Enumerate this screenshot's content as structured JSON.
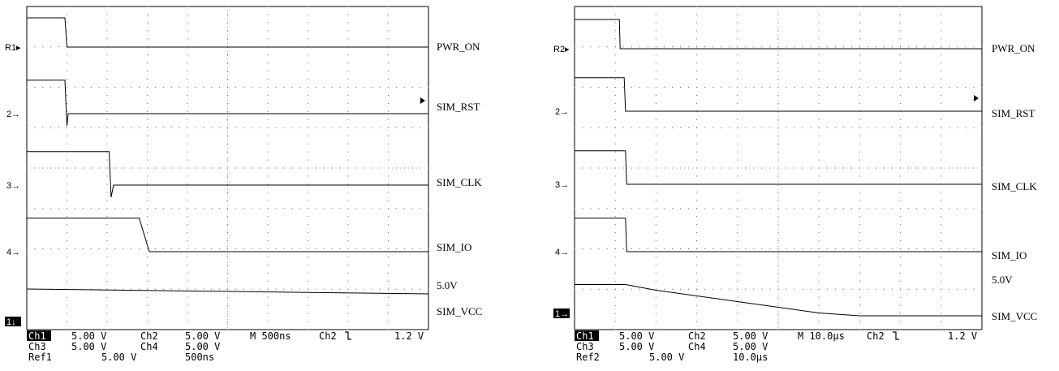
{
  "panels": [
    {
      "ref_marker": "R1",
      "gnd1_glyph": "1↓",
      "readout": {
        "ch1_name": "Ch1",
        "ch1_scale": "5.00 V",
        "ch2_name": "Ch2",
        "ch2_scale": "5.00 V",
        "ch3_name": "Ch3",
        "ch3_scale": "5.00 V",
        "ch4_name": "Ch4",
        "ch4_scale": "5.00 V",
        "ref_name": "Ref1",
        "ref_scale": "5.00 V",
        "ref_time": "500ns",
        "timebase": "M  500ns",
        "trigger_channel": "Ch2",
        "trigger_slope_icon": "falling-edge-icon",
        "trigger_level": "1.2 V"
      },
      "labels": [
        "PWR_ON",
        "SIM_RST",
        "SIM_CLK",
        "SIM_IO",
        "5.0V",
        "SIM_VCC"
      ]
    },
    {
      "ref_marker": "R2",
      "gnd1_glyph": "1→",
      "readout": {
        "ch1_name": "Ch1",
        "ch1_scale": "5.00 V",
        "ch2_name": "Ch2",
        "ch2_scale": "5.00 V",
        "ch3_name": "Ch3",
        "ch3_scale": "5.00 V",
        "ch4_name": "Ch4",
        "ch4_scale": "5.00 V",
        "ref_name": "Ref2",
        "ref_scale": "5.00 V",
        "ref_time": "10.0μs",
        "timebase": "M 10.0μs",
        "trigger_channel": "Ch2",
        "trigger_slope_icon": "falling-edge-icon",
        "trigger_level": "1.2 V"
      },
      "labels": [
        "PWR_ON",
        "SIM_RST",
        "SIM_CLK",
        "SIM_IO",
        "5.0V",
        "SIM_VCC"
      ]
    }
  ],
  "ground_markers": [
    "2",
    "3",
    "4"
  ],
  "chart_data": [
    {
      "type": "line",
      "xlabel": "",
      "ylabel": "",
      "x_unit": "divisions",
      "xlim": [
        0,
        10
      ],
      "ylim": [
        0,
        8
      ],
      "grid": true,
      "series": [
        {
          "name": "PWR_ON",
          "x": [
            0,
            0.95,
            1.0,
            10
          ],
          "y": [
            0.48,
            0.48,
            0.0,
            0.0
          ]
        },
        {
          "name": "SIM_RST",
          "x": [
            0,
            0.95,
            1.0,
            1.03,
            2.3,
            10
          ],
          "y": [
            0.55,
            0.55,
            -0.2,
            0.0,
            0.0,
            0.0
          ]
        },
        {
          "name": "SIM_CLK",
          "x": [
            0,
            2.05,
            2.1,
            2.16,
            10
          ],
          "y": [
            0.55,
            0.55,
            -0.2,
            0.0,
            0.0
          ]
        },
        {
          "name": "SIM_IO",
          "x": [
            0,
            2.8,
            3.05,
            10
          ],
          "y": [
            0.55,
            0.55,
            0.0,
            0.0
          ]
        },
        {
          "name": "SIM_VCC",
          "x": [
            0,
            10
          ],
          "y": [
            5.0,
            4.85
          ]
        }
      ]
    },
    {
      "type": "line",
      "xlabel": "",
      "ylabel": "",
      "x_unit": "divisions",
      "xlim": [
        0,
        10
      ],
      "ylim": [
        0,
        8
      ],
      "grid": true,
      "series": [
        {
          "name": "PWR_ON",
          "x": [
            0,
            1.1,
            1.12,
            10
          ],
          "y": [
            0.48,
            0.48,
            0.0,
            0.0
          ]
        },
        {
          "name": "SIM_RST",
          "x": [
            0,
            1.22,
            1.25,
            10
          ],
          "y": [
            0.55,
            0.55,
            0.0,
            0.0
          ]
        },
        {
          "name": "SIM_CLK",
          "x": [
            0,
            1.25,
            1.28,
            10
          ],
          "y": [
            0.55,
            0.55,
            0.0,
            0.0
          ]
        },
        {
          "name": "SIM_IO",
          "x": [
            0,
            1.25,
            1.28,
            10
          ],
          "y": [
            0.55,
            0.55,
            0.0,
            0.0
          ]
        },
        {
          "name": "SIM_VCC",
          "x": [
            0,
            1.25,
            2.0,
            4.0,
            6.0,
            7.0,
            10
          ],
          "y": [
            5.0,
            5.0,
            4.6,
            3.8,
            3.0,
            2.8,
            2.8
          ]
        }
      ]
    }
  ]
}
